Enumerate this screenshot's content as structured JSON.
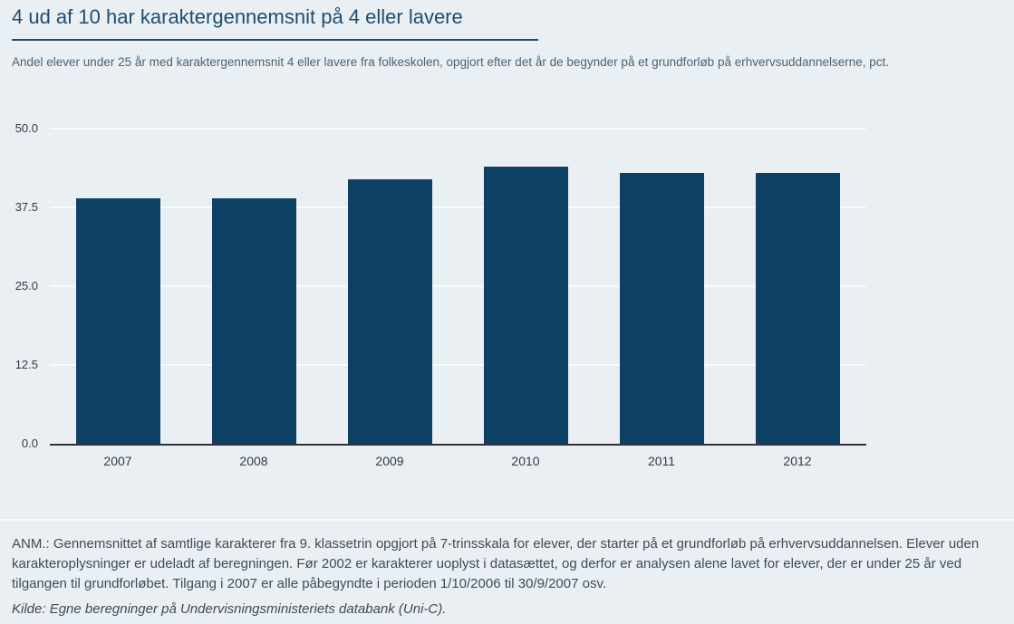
{
  "header": {
    "title": "4 ud af 10 har karaktergennemsnit på 4 eller lavere",
    "subtitle": "Andel elever under 25 år med karaktergennemsnit 4 eller lavere fra folkeskolen, opgjort efter det år de begynder på et grundforløb på erhvervsuddannelserne, pct."
  },
  "chart_data": {
    "type": "bar",
    "categories": [
      "2007",
      "2008",
      "2009",
      "2010",
      "2011",
      "2012"
    ],
    "values": [
      38.9,
      38.9,
      42.0,
      44.0,
      42.9,
      42.9
    ],
    "title": "4 ud af 10 har karaktergennemsnit på 4 eller lavere",
    "xlabel": "",
    "ylabel": "",
    "ylim": [
      0,
      50
    ],
    "yticks": [
      "0.0",
      "12.5",
      "25.0",
      "37.5",
      "50.0"
    ],
    "grid": true,
    "legend": "none"
  },
  "footer": {
    "note": "ANM.: Gennemsnittet af samtlige karakterer fra 9. klassetrin opgjort på 7-trinsskala for elever, der starter på et grundforløb på erhvervsuddannelsen. Elever uden karakteroplysninger er udeladt af beregningen. Før 2002 er karakterer uoplyst i datasættet, og derfor er analysen alene lavet for elever, der er under 25 år ved tilgangen til grundforløbet. Tilgang i 2007 er alle påbegyndte i perioden 1/10/2006 til 30/9/2007 osv.",
    "source": "Kilde: Egne beregninger på Undervisningsministeriets databank (Uni-C)."
  },
  "colors": {
    "background": "#eaeff4",
    "bar": "#0c4164",
    "title": "#1c4d72",
    "gridline": "#f7fafc",
    "axis": "#303338"
  }
}
